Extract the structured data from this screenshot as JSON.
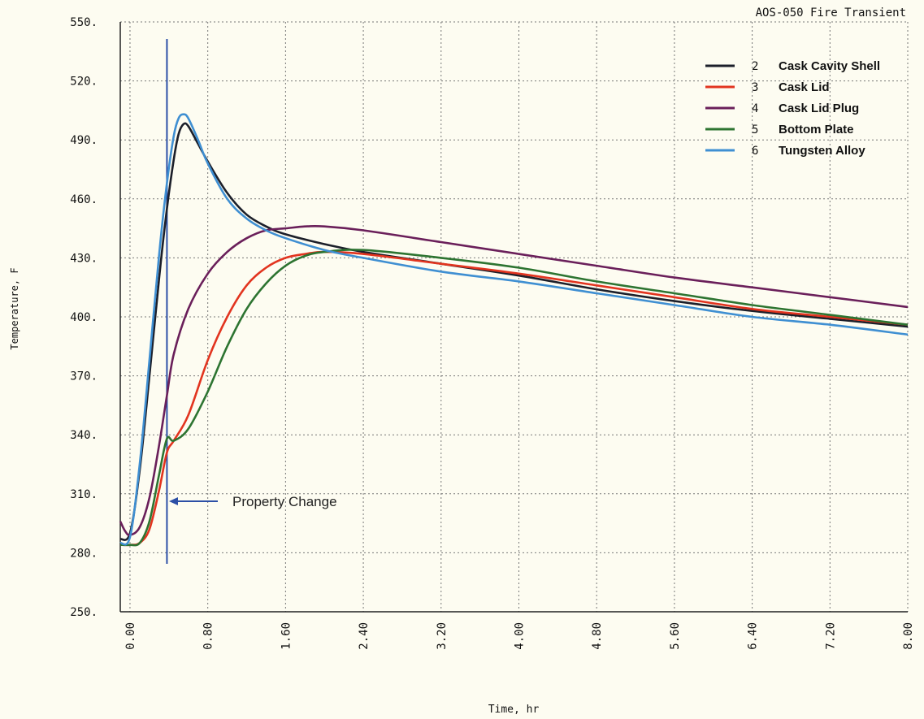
{
  "chart_data": {
    "type": "line",
    "title": "AOS-050 Fire Transient",
    "xlabel": "Time, hr",
    "ylabel": "Temperature, F",
    "xlim": [
      -0.1,
      8.0
    ],
    "ylim": [
      250,
      550
    ],
    "xticks": [
      "0.00",
      "0.80",
      "1.60",
      "2.40",
      "3.20",
      "4.00",
      "4.80",
      "5.60",
      "6.40",
      "7.20",
      "8.00"
    ],
    "yticks": [
      "550.",
      "520.",
      "490.",
      "460.",
      "430.",
      "400.",
      "370.",
      "340.",
      "310.",
      "280.",
      "250."
    ],
    "grid": true,
    "legend_position": "top-right",
    "annotation": {
      "text": "Property Change",
      "x": 0.38
    },
    "series": [
      {
        "num": "2",
        "name": "Cask Cavity Shell",
        "color": "#1c1f2a",
        "points": [
          [
            -0.1,
            287
          ],
          [
            0,
            290
          ],
          [
            0.1,
            322
          ],
          [
            0.2,
            370
          ],
          [
            0.3,
            420
          ],
          [
            0.38,
            455
          ],
          [
            0.45,
            480
          ],
          [
            0.5,
            493
          ],
          [
            0.55,
            498
          ],
          [
            0.6,
            497
          ],
          [
            0.7,
            488
          ],
          [
            0.8,
            479
          ],
          [
            1.0,
            463
          ],
          [
            1.2,
            452
          ],
          [
            1.4,
            446
          ],
          [
            1.6,
            442
          ],
          [
            2.0,
            437
          ],
          [
            2.4,
            433
          ],
          [
            3.2,
            427
          ],
          [
            4.0,
            421
          ],
          [
            4.8,
            414
          ],
          [
            5.6,
            408
          ],
          [
            6.4,
            403
          ],
          [
            7.2,
            399
          ],
          [
            8.0,
            395
          ]
        ]
      },
      {
        "num": "3",
        "name": "Cask Lid",
        "color": "#e2341f",
        "points": [
          [
            -0.1,
            284
          ],
          [
            0,
            284
          ],
          [
            0.1,
            285
          ],
          [
            0.2,
            292
          ],
          [
            0.3,
            312
          ],
          [
            0.38,
            331
          ],
          [
            0.45,
            337
          ],
          [
            0.6,
            350
          ],
          [
            0.8,
            378
          ],
          [
            1.0,
            400
          ],
          [
            1.2,
            416
          ],
          [
            1.4,
            425
          ],
          [
            1.6,
            430
          ],
          [
            1.8,
            432
          ],
          [
            2.0,
            433
          ],
          [
            2.4,
            432
          ],
          [
            3.2,
            427
          ],
          [
            4.0,
            422
          ],
          [
            4.8,
            416
          ],
          [
            5.6,
            410
          ],
          [
            6.4,
            404
          ],
          [
            7.2,
            400
          ],
          [
            8.0,
            396
          ]
        ]
      },
      {
        "num": "4",
        "name": "Cask Lid Plug",
        "color": "#6a1f5a",
        "points": [
          [
            -0.1,
            296
          ],
          [
            -0.05,
            291
          ],
          [
            0,
            289
          ],
          [
            0.1,
            293
          ],
          [
            0.2,
            308
          ],
          [
            0.3,
            335
          ],
          [
            0.38,
            360
          ],
          [
            0.45,
            381
          ],
          [
            0.6,
            404
          ],
          [
            0.8,
            422
          ],
          [
            1.0,
            433
          ],
          [
            1.2,
            440
          ],
          [
            1.4,
            444
          ],
          [
            1.6,
            445
          ],
          [
            1.8,
            446
          ],
          [
            2.0,
            446
          ],
          [
            2.4,
            444
          ],
          [
            3.2,
            438
          ],
          [
            4.0,
            432
          ],
          [
            4.8,
            426
          ],
          [
            5.6,
            420
          ],
          [
            6.4,
            415
          ],
          [
            7.2,
            410
          ],
          [
            8.0,
            405
          ]
        ]
      },
      {
        "num": "5",
        "name": "Bottom Plate",
        "color": "#2d7431",
        "points": [
          [
            -0.1,
            284
          ],
          [
            0,
            284
          ],
          [
            0.1,
            285
          ],
          [
            0.2,
            296
          ],
          [
            0.3,
            320
          ],
          [
            0.38,
            338
          ],
          [
            0.45,
            337
          ],
          [
            0.6,
            343
          ],
          [
            0.8,
            362
          ],
          [
            1.0,
            385
          ],
          [
            1.2,
            404
          ],
          [
            1.4,
            417
          ],
          [
            1.6,
            426
          ],
          [
            1.8,
            431
          ],
          [
            2.0,
            433
          ],
          [
            2.4,
            434
          ],
          [
            3.2,
            430
          ],
          [
            4.0,
            425
          ],
          [
            4.8,
            418
          ],
          [
            5.6,
            412
          ],
          [
            6.4,
            406
          ],
          [
            7.2,
            401
          ],
          [
            8.0,
            396
          ]
        ]
      },
      {
        "num": "6",
        "name": "Tungsten Alloy",
        "color": "#3f8fd2",
        "points": [
          [
            -0.1,
            285
          ],
          [
            0,
            288
          ],
          [
            0.1,
            325
          ],
          [
            0.2,
            378
          ],
          [
            0.3,
            432
          ],
          [
            0.38,
            468
          ],
          [
            0.45,
            492
          ],
          [
            0.5,
            501
          ],
          [
            0.55,
            503
          ],
          [
            0.6,
            501
          ],
          [
            0.7,
            490
          ],
          [
            0.8,
            478
          ],
          [
            1.0,
            460
          ],
          [
            1.2,
            450
          ],
          [
            1.4,
            444
          ],
          [
            1.6,
            440
          ],
          [
            2.0,
            434
          ],
          [
            2.4,
            430
          ],
          [
            3.2,
            423
          ],
          [
            4.0,
            418
          ],
          [
            4.8,
            412
          ],
          [
            5.6,
            406
          ],
          [
            6.4,
            400
          ],
          [
            7.2,
            396
          ],
          [
            8.0,
            391
          ]
        ]
      }
    ]
  }
}
